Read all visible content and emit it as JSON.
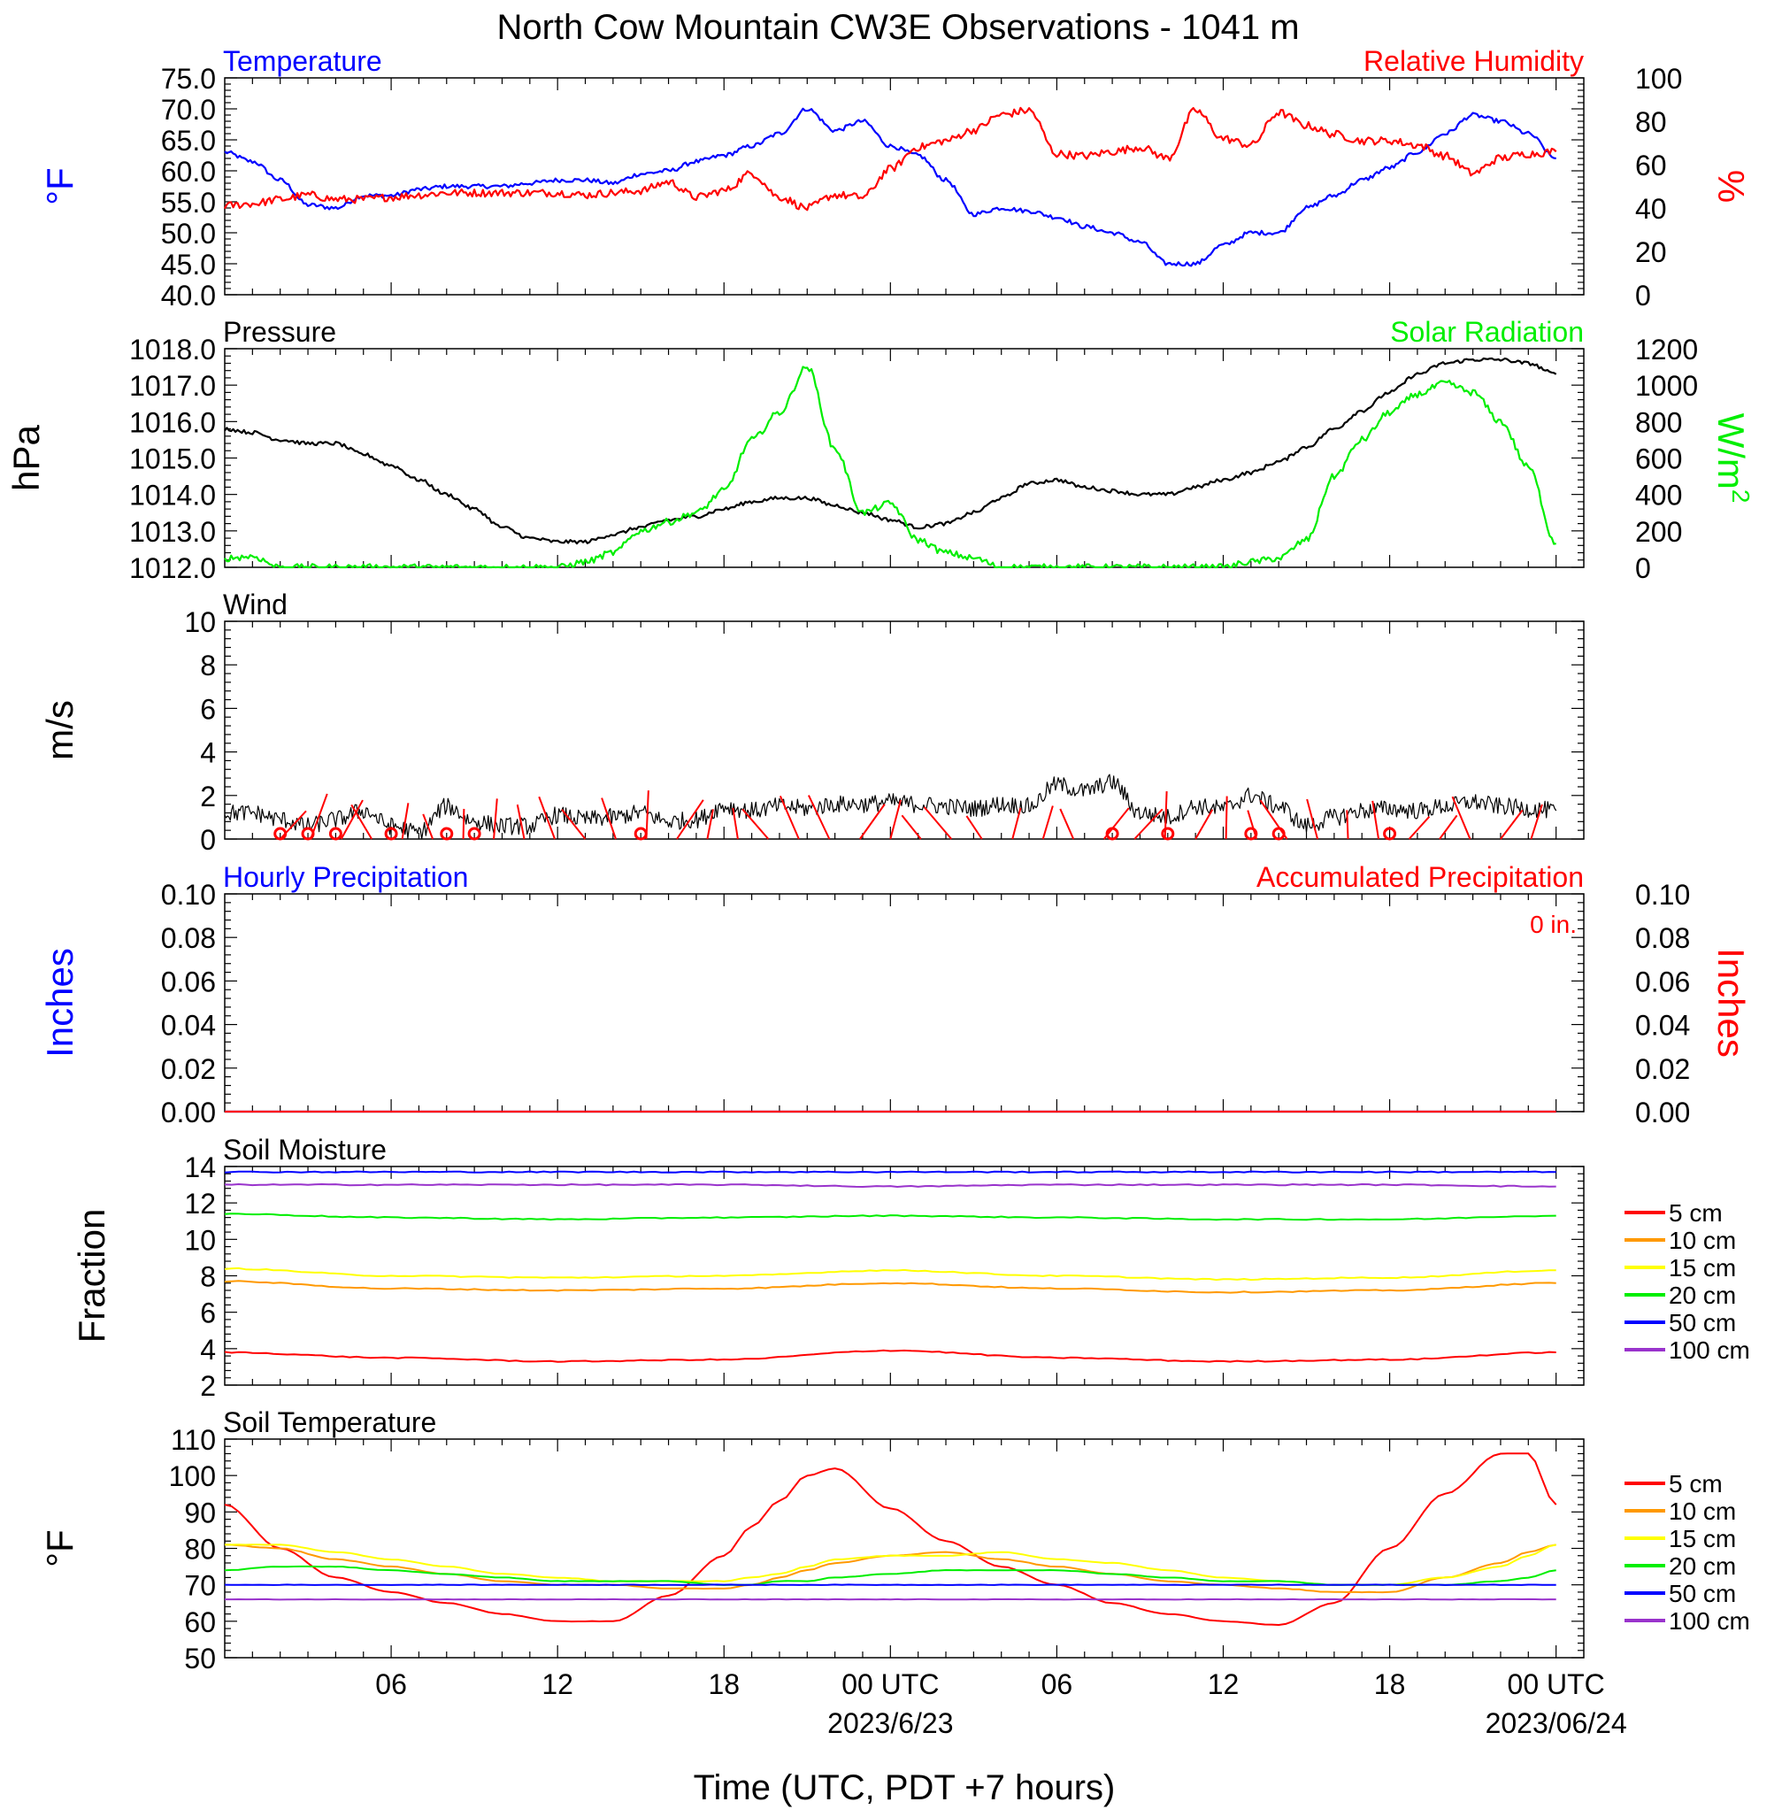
{
  "title": "North Cow Mountain CW3E Observations - 1041 m",
  "colors": {
    "temperature": "#0000ff",
    "humidity": "#ff0000",
    "pressure": "#000000",
    "solar": "#00ee00",
    "wind": "#000000",
    "wind_barb": "#ff0000",
    "hourly_precip": "#0000ff",
    "accum_precip": "#ff0000",
    "d5": "#ff0000",
    "d10": "#ff9900",
    "d15": "#ffff00",
    "d20": "#00ee00",
    "d50": "#0000ff",
    "d100": "#9933cc"
  },
  "x_axis": {
    "label": "Time (UTC, PDT +7 hours)",
    "ticks": [
      {
        "hour": 6,
        "label": "06"
      },
      {
        "hour": 12,
        "label": "12"
      },
      {
        "hour": 18,
        "label": "18"
      },
      {
        "hour": 24,
        "label": "00 UTC"
      },
      {
        "hour": 30,
        "label": "06"
      },
      {
        "hour": 36,
        "label": "12"
      },
      {
        "hour": 42,
        "label": "18"
      },
      {
        "hour": 48,
        "label": "00 UTC"
      }
    ],
    "date_labels": [
      {
        "hour": 24,
        "label": "2023/6/23"
      },
      {
        "hour": 48,
        "label": "2023/06/24"
      }
    ]
  },
  "chart_data": [
    {
      "type": "line",
      "panel": "temperature-humidity",
      "title_left": "Temperature",
      "title_right": "Relative Humidity",
      "ylabel_left": "°F",
      "ylabel_right": "%",
      "ylim_left": [
        40,
        75
      ],
      "yticks_left": [
        "40.0",
        "45.0",
        "50.0",
        "55.0",
        "60.0",
        "65.0",
        "70.0",
        "75.0"
      ],
      "ylim_right": [
        0,
        100
      ],
      "yticks_right": [
        "0",
        "20",
        "40",
        "60",
        "80",
        "100"
      ],
      "x_hours": [
        0,
        1,
        2,
        3,
        4,
        5,
        6,
        7,
        8,
        9,
        10,
        11,
        12,
        13,
        14,
        15,
        16,
        17,
        18,
        19,
        20,
        21,
        22,
        23,
        24,
        25,
        26,
        27,
        28,
        29,
        30,
        31,
        32,
        33,
        34,
        35,
        36,
        37,
        38,
        39,
        40,
        41,
        42,
        43,
        44,
        45,
        46,
        47,
        48
      ],
      "series": [
        {
          "name": "Temperature",
          "axis": "left",
          "values": [
            63,
            61.5,
            58.5,
            54.5,
            54,
            56,
            56,
            57,
            57.5,
            57.5,
            57.5,
            58,
            58.5,
            58.5,
            58,
            59.5,
            60,
            61.5,
            62.5,
            64,
            66,
            70,
            66.5,
            68,
            64,
            62.5,
            58.5,
            53,
            54,
            53.5,
            52.5,
            51,
            50,
            48.5,
            45,
            45,
            48,
            50,
            50,
            54,
            56,
            58.5,
            60.5,
            63,
            66,
            69,
            68,
            66,
            62
          ]
        },
        {
          "name": "Relative Humidity",
          "axis": "right",
          "values": [
            41,
            42,
            44,
            46,
            44,
            44,
            45,
            46,
            47,
            47,
            47,
            47,
            47,
            46,
            47,
            48,
            52,
            45,
            48,
            56,
            45,
            40,
            46,
            45,
            58,
            68,
            71,
            76,
            83,
            85,
            65,
            64,
            66,
            68,
            63,
            85,
            72,
            69,
            84,
            78,
            74,
            71,
            71,
            69,
            64,
            56,
            63,
            65,
            66
          ]
        }
      ]
    },
    {
      "type": "line",
      "panel": "pressure-solar",
      "title_left": "Pressure",
      "title_right": "Solar Radiation",
      "ylabel_left": "hPa",
      "ylabel_right": "W/m",
      "ylabel_right_superscript": "2",
      "ylim_left": [
        1012,
        1018
      ],
      "yticks_left": [
        "1012.0",
        "1013.0",
        "1014.0",
        "1015.0",
        "1016.0",
        "1017.0",
        "1018.0"
      ],
      "ylim_right": [
        0,
        1200
      ],
      "yticks_right": [
        "0",
        "200",
        "400",
        "600",
        "800",
        "1000",
        "1200"
      ],
      "x_hours": [
        0,
        1,
        2,
        3,
        4,
        5,
        6,
        7,
        8,
        9,
        10,
        11,
        12,
        13,
        14,
        15,
        16,
        17,
        18,
        19,
        20,
        21,
        22,
        23,
        24,
        25,
        26,
        27,
        28,
        29,
        30,
        31,
        32,
        33,
        34,
        35,
        36,
        37,
        38,
        39,
        40,
        41,
        42,
        43,
        44,
        45,
        46,
        47,
        48
      ],
      "series": [
        {
          "name": "Pressure",
          "axis": "left",
          "values": [
            1015.8,
            1015.7,
            1015.5,
            1015.4,
            1015.4,
            1015.1,
            1014.8,
            1014.4,
            1014.0,
            1013.6,
            1013.1,
            1012.8,
            1012.7,
            1012.7,
            1012.9,
            1013.1,
            1013.3,
            1013.4,
            1013.6,
            1013.8,
            1013.9,
            1013.9,
            1013.7,
            1013.5,
            1013.3,
            1013.1,
            1013.2,
            1013.5,
            1013.9,
            1014.3,
            1014.4,
            1014.2,
            1014.1,
            1014.0,
            1014.0,
            1014.2,
            1014.4,
            1014.6,
            1014.9,
            1015.3,
            1015.8,
            1016.3,
            1016.8,
            1017.3,
            1017.6,
            1017.7,
            1017.7,
            1017.6,
            1017.3
          ]
        },
        {
          "name": "Solar Radiation",
          "axis": "right",
          "values": [
            50,
            60,
            0,
            0,
            0,
            0,
            0,
            0,
            0,
            0,
            0,
            0,
            0,
            30,
            80,
            200,
            250,
            300,
            420,
            700,
            850,
            1100,
            650,
            300,
            350,
            150,
            80,
            50,
            0,
            0,
            0,
            0,
            0,
            0,
            0,
            0,
            0,
            30,
            50,
            150,
            500,
            700,
            850,
            950,
            1010,
            960,
            800,
            550,
            130
          ]
        }
      ]
    },
    {
      "type": "line",
      "panel": "wind",
      "title_left": "Wind",
      "ylabel_left": "m/s",
      "ylim_left": [
        0,
        10
      ],
      "yticks_left": [
        "0",
        "2",
        "4",
        "6",
        "8",
        "10"
      ],
      "x_hours": [
        0,
        1,
        2,
        3,
        4,
        5,
        6,
        7,
        8,
        9,
        10,
        11,
        12,
        13,
        14,
        15,
        16,
        17,
        18,
        19,
        20,
        21,
        22,
        23,
        24,
        25,
        26,
        27,
        28,
        29,
        30,
        31,
        32,
        33,
        34,
        35,
        36,
        37,
        38,
        39,
        40,
        41,
        42,
        43,
        44,
        45,
        46,
        47,
        48
      ],
      "series": [
        {
          "name": "Wind",
          "axis": "left",
          "values": [
            1.2,
            1.2,
            0.9,
            0.6,
            0.9,
            1.3,
            0.6,
            0.3,
            1.5,
            0.8,
            0.6,
            0.6,
            1.1,
            0.9,
            1.0,
            1.2,
            0.8,
            0.9,
            1.5,
            1.3,
            1.5,
            1.4,
            1.6,
            1.6,
            1.7,
            1.6,
            1.5,
            1.4,
            1.6,
            1.5,
            2.5,
            2.2,
            2.6,
            1.2,
            1.0,
            1.5,
            1.4,
            2.0,
            1.5,
            0.6,
            1.0,
            1.3,
            1.4,
            1.3,
            1.5,
            1.7,
            1.5,
            1.4,
            1.3
          ]
        }
      ],
      "calm_markers_hours": [
        2,
        3,
        4,
        6,
        8,
        9,
        15,
        32,
        34,
        37,
        38,
        42
      ]
    },
    {
      "type": "line",
      "panel": "precipitation",
      "title_left": "Hourly Precipitation",
      "title_right": "Accumulated Precipitation",
      "annotation": "0 in.",
      "ylabel_left": "Inches",
      "ylabel_right": "Inches",
      "ylim_left": [
        0,
        0.1
      ],
      "yticks_left": [
        "0.00",
        "0.02",
        "0.04",
        "0.06",
        "0.08",
        "0.10"
      ],
      "ylim_right": [
        0,
        0.1
      ],
      "yticks_right": [
        "0.00",
        "0.02",
        "0.04",
        "0.06",
        "0.08",
        "0.10"
      ],
      "x_hours": [
        0,
        48
      ],
      "series": [
        {
          "name": "Hourly Precipitation",
          "axis": "left",
          "values": [
            0,
            0
          ]
        },
        {
          "name": "Accumulated Precipitation",
          "axis": "right",
          "values": [
            0,
            0
          ]
        }
      ]
    },
    {
      "type": "line",
      "panel": "soil-moisture",
      "title_left": "Soil Moisture",
      "ylabel_left": "Fraction",
      "ylim_left": [
        2,
        14
      ],
      "yticks_left": [
        "2",
        "4",
        "6",
        "8",
        "10",
        "12",
        "14"
      ],
      "x_hours": [
        0,
        6,
        12,
        18,
        24,
        30,
        36,
        42,
        48
      ],
      "series": [
        {
          "name": "5 cm",
          "values": [
            3.8,
            3.5,
            3.3,
            3.4,
            3.9,
            3.5,
            3.3,
            3.4,
            3.8
          ]
        },
        {
          "name": "10 cm",
          "values": [
            7.7,
            7.3,
            7.2,
            7.3,
            7.6,
            7.3,
            7.1,
            7.2,
            7.6
          ]
        },
        {
          "name": "15 cm",
          "values": [
            8.4,
            8.0,
            7.9,
            8.0,
            8.3,
            8.0,
            7.8,
            7.9,
            8.3
          ]
        },
        {
          "name": "20 cm",
          "values": [
            11.4,
            11.2,
            11.1,
            11.2,
            11.3,
            11.2,
            11.1,
            11.1,
            11.3
          ]
        },
        {
          "name": "50 cm",
          "values": [
            13.7,
            13.7,
            13.7,
            13.7,
            13.7,
            13.7,
            13.7,
            13.7,
            13.7
          ]
        },
        {
          "name": "100 cm",
          "values": [
            13.0,
            13.0,
            13.0,
            13.0,
            12.9,
            13.0,
            13.0,
            13.0,
            12.9
          ]
        }
      ]
    },
    {
      "type": "line",
      "panel": "soil-temperature",
      "title_left": "Soil Temperature",
      "ylabel_left": "°F",
      "ylim_left": [
        50,
        110
      ],
      "yticks_left": [
        "50",
        "60",
        "70",
        "80",
        "90",
        "100",
        "110"
      ],
      "x_hours": [
        0,
        2,
        4,
        6,
        8,
        10,
        12,
        14,
        16,
        18,
        19,
        20,
        21,
        22,
        24,
        26,
        28,
        30,
        32,
        34,
        36,
        38,
        40,
        42,
        44,
        46,
        47,
        48
      ],
      "series": [
        {
          "name": "5 cm",
          "values": [
            92,
            80,
            72,
            68,
            65,
            62,
            60,
            60,
            67,
            78,
            86,
            93,
            100,
            102,
            91,
            82,
            75,
            70,
            65,
            62,
            60,
            59,
            65,
            80,
            95,
            106,
            106,
            92
          ]
        },
        {
          "name": "10 cm",
          "values": [
            81,
            80,
            77,
            75,
            73,
            71,
            70,
            70,
            69,
            69,
            70,
            72,
            74,
            76,
            78,
            79,
            77,
            75,
            73,
            71,
            70,
            69,
            68,
            68,
            72,
            76,
            79,
            81
          ]
        },
        {
          "name": "15 cm",
          "values": [
            81,
            81,
            79,
            77,
            75,
            73,
            72,
            71,
            71,
            71,
            72,
            73,
            75,
            77,
            78,
            78,
            79,
            77,
            76,
            74,
            72,
            71,
            70,
            70,
            72,
            75,
            78,
            81
          ]
        },
        {
          "name": "20 cm",
          "values": [
            74,
            75,
            75,
            74,
            73,
            72,
            71,
            71,
            71,
            70,
            70,
            71,
            71,
            72,
            73,
            74,
            74,
            74,
            73,
            72,
            71,
            71,
            70,
            70,
            70,
            71,
            72,
            74
          ]
        },
        {
          "name": "50 cm",
          "values": [
            70,
            70,
            70,
            70,
            70,
            70,
            70,
            70,
            70,
            70,
            70,
            70,
            70,
            70,
            70,
            70,
            70,
            70,
            70,
            70,
            70,
            70,
            70,
            70,
            70,
            70,
            70,
            70
          ]
        },
        {
          "name": "100 cm",
          "values": [
            66,
            66,
            66,
            66,
            66,
            66,
            66,
            66,
            66,
            66,
            66,
            66,
            66,
            66,
            66,
            66,
            66,
            66,
            66,
            66,
            66,
            66,
            66,
            66,
            66,
            66,
            66,
            66
          ]
        }
      ]
    }
  ]
}
